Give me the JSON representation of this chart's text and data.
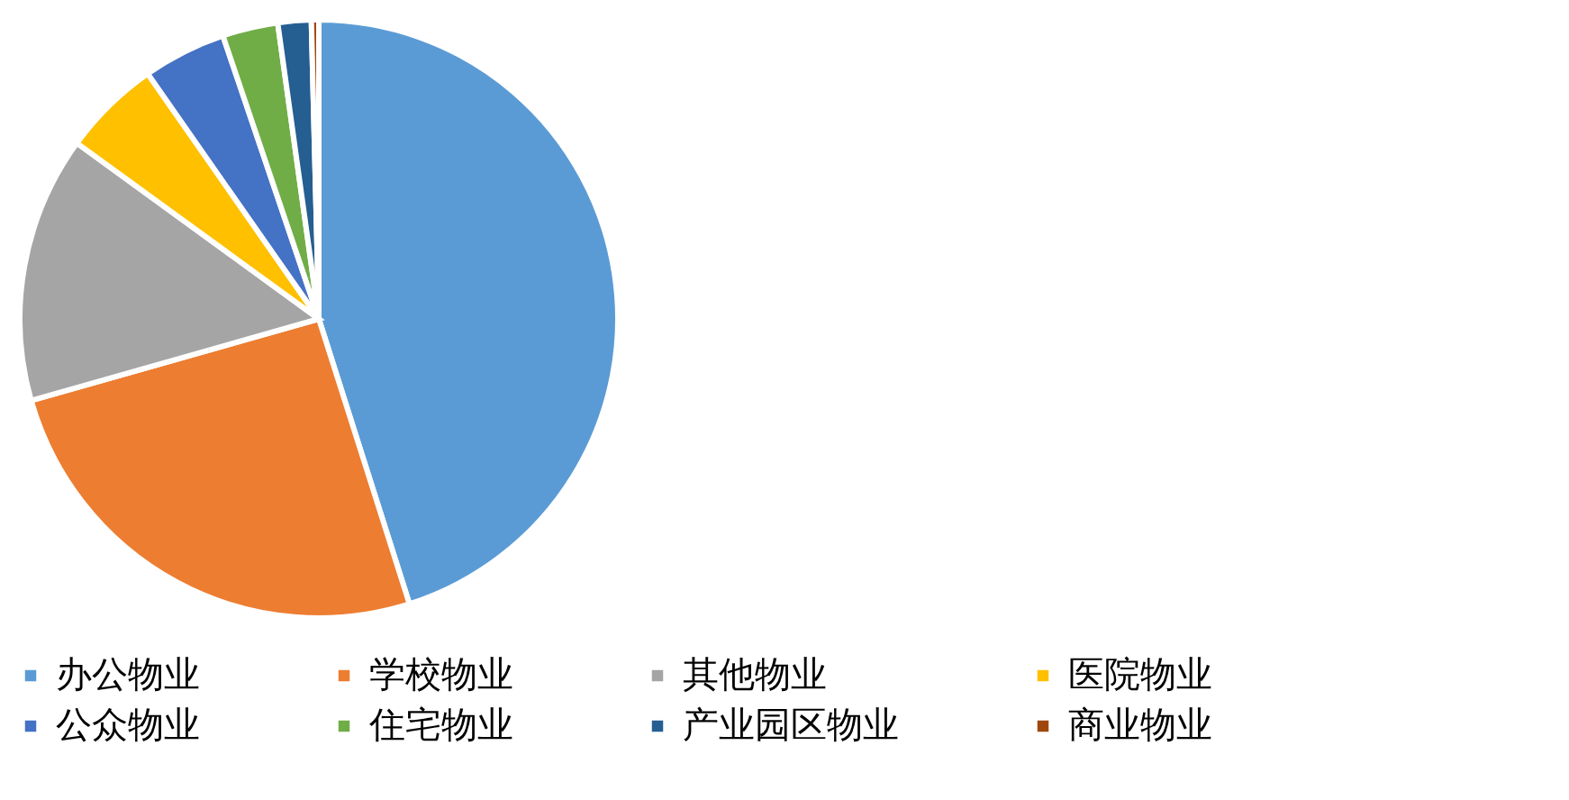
{
  "chart_data": {
    "type": "pie",
    "categories": [
      "办公物业",
      "学校物业",
      "其他物业",
      "医院物业",
      "公众物业",
      "住宅物业",
      "产业园区物业",
      "商业物业"
    ],
    "values": [
      45.1,
      25.5,
      14.4,
      5.3,
      4.5,
      3.0,
      1.8,
      0.4
    ],
    "colors": [
      "#5b9bd5",
      "#ed7d31",
      "#a5a5a5",
      "#ffc000",
      "#4472c4",
      "#70ad47",
      "#255e91",
      "#9e480e"
    ],
    "legend": "bottom"
  }
}
